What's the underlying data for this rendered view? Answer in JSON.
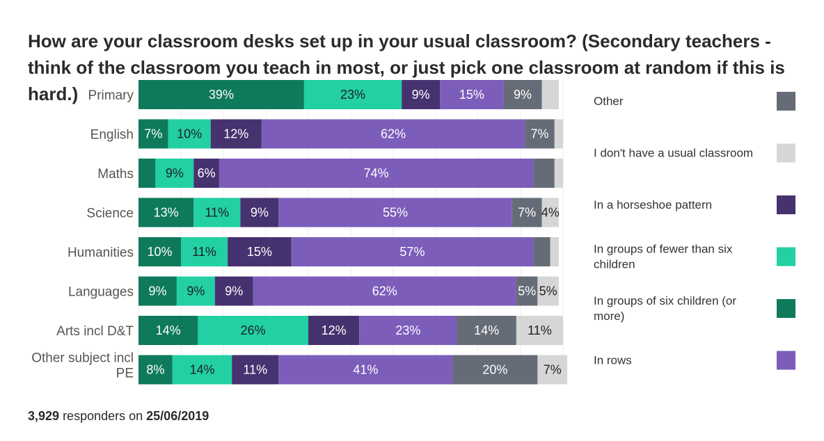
{
  "chart_data": {
    "type": "bar",
    "stacked": true,
    "orientation": "horizontal",
    "title": "How are your classroom desks set up in your usual classroom? (Secondary teachers - think of the classroom you teach in most, or just pick one classroom at random if this is hard.)",
    "xlim": [
      0,
      100
    ],
    "grid": true,
    "legend_position": "right",
    "categories": [
      "Primary",
      "English",
      "Maths",
      "Science",
      "Humanities",
      "Languages",
      "Arts incl D&T",
      "Other subject incl PE"
    ],
    "series": [
      {
        "name": "In groups of six children (or more)",
        "color": "#0e7a5b",
        "text_color": "#ffffff",
        "values": [
          39,
          7,
          4,
          13,
          10,
          9,
          14,
          8
        ],
        "labels": [
          "39%",
          "7%",
          "",
          "13%",
          "10%",
          "9%",
          "14%",
          "8%"
        ]
      },
      {
        "name": "In groups of fewer than six children",
        "color": "#22d0a4",
        "text_color": "#1f1f1f",
        "values": [
          23,
          10,
          9,
          11,
          11,
          9,
          26,
          14
        ],
        "labels": [
          "23%",
          "10%",
          "9%",
          "11%",
          "11%",
          "9%",
          "26%",
          "14%"
        ]
      },
      {
        "name": "In a horseshoe pattern",
        "color": "#46326f",
        "text_color": "#ffffff",
        "values": [
          9,
          12,
          6,
          9,
          15,
          9,
          12,
          11
        ],
        "labels": [
          "9%",
          "12%",
          "6%",
          "9%",
          "15%",
          "9%",
          "12%",
          "11%"
        ]
      },
      {
        "name": "In rows",
        "color": "#7c5dba",
        "text_color": "#ffffff",
        "values": [
          15,
          62,
          74,
          55,
          57,
          62,
          23,
          41
        ],
        "labels": [
          "15%",
          "62%",
          "74%",
          "55%",
          "57%",
          "62%",
          "23%",
          "41%"
        ]
      },
      {
        "name": "Other",
        "color": "#656c77",
        "text_color": "#ffffff",
        "values": [
          9,
          7,
          5,
          7,
          4,
          5,
          14,
          20
        ],
        "labels": [
          "9%",
          "7%",
          "",
          "7%",
          "",
          "5%",
          "14%",
          "20%"
        ]
      },
      {
        "name": "I don't have a usual classroom",
        "color": "#d6d6d6",
        "text_color": "#1f1f1f",
        "values": [
          4,
          2,
          2,
          4,
          2,
          5,
          11,
          7
        ],
        "labels": [
          "",
          "",
          "",
          "4%",
          "",
          "5%",
          "11%",
          "7%"
        ]
      }
    ],
    "legend_order": [
      "Other",
      "I don't have a usual classroom",
      "In a horseshoe pattern",
      "In groups of fewer than six children",
      "In groups of six children (or more)",
      "In rows"
    ]
  },
  "footer": {
    "count": "3,929",
    "responders_text": "responders on",
    "date": "25/06/2019"
  }
}
